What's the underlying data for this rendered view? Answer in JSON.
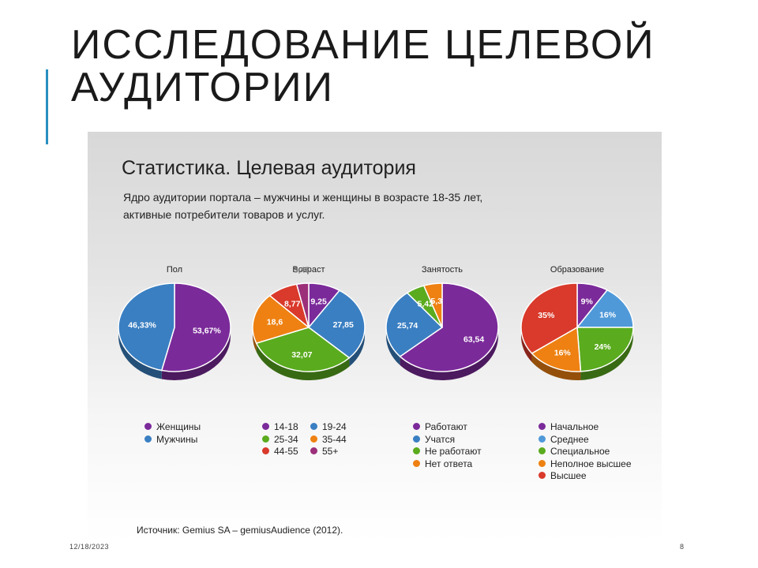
{
  "slide": {
    "title": "ИССЛЕДОВАНИЕ ЦЕЛЕВОЙ АУДИТОРИИ",
    "date": "12/18/2023",
    "page": "8"
  },
  "panel": {
    "title": "Статистика. Целевая аудитория",
    "subtitle_line1": "Ядро аудитории портала – мужчины и женщины в возрасте 18-35 лет,",
    "subtitle_line2": "активные потребители товаров и услуг.",
    "source": "Источник: Gemius SA – gemiusAudience (2012)."
  },
  "colors": {
    "purple": "#7b2a9a",
    "blue": "#3a7fc2",
    "green": "#5aab1e",
    "orange": "#ee8112",
    "red": "#d93a2b",
    "magenta": "#9c2f7a",
    "lightblue": "#4f99d9"
  },
  "chart_data": [
    {
      "type": "pie",
      "title": "Пол",
      "slices": [
        {
          "label": "Женщины",
          "value": 53.67,
          "display": "53,67%",
          "color": "#7b2a9a"
        },
        {
          "label": "Мужчины",
          "value": 46.33,
          "display": "46,33%",
          "color": "#3a7fc2"
        }
      ]
    },
    {
      "type": "pie",
      "title": "Возраст",
      "slices": [
        {
          "label": "14-18",
          "value": 9.25,
          "display": "9,25",
          "color": "#7b2a9a"
        },
        {
          "label": "19-24",
          "value": 27.85,
          "display": "27,85",
          "color": "#3a7fc2"
        },
        {
          "label": "25-34",
          "value": 32.07,
          "display": "32,07",
          "color": "#5aab1e"
        },
        {
          "label": "35-44",
          "value": 18.6,
          "display": "18,6",
          "color": "#ee8112"
        },
        {
          "label": "44-55",
          "value": 8.77,
          "display": "8,77",
          "color": "#d93a2b"
        },
        {
          "label": "55+",
          "value": 3.45,
          "display": "3,45",
          "color": "#9c2f7a"
        }
      ]
    },
    {
      "type": "pie",
      "title": "Занятость",
      "slices": [
        {
          "label": "Работают",
          "value": 63.54,
          "display": "63,54",
          "color": "#7b2a9a"
        },
        {
          "label": "Учатся",
          "value": 25.74,
          "display": "25,74",
          "color": "#3a7fc2"
        },
        {
          "label": "Не работают",
          "value": 5.42,
          "display": "5,42",
          "color": "#5aab1e"
        },
        {
          "label": "Нет ответа",
          "value": 5.3,
          "display": "5,3",
          "color": "#ee8112"
        }
      ]
    },
    {
      "type": "pie",
      "title": "Образование",
      "slices": [
        {
          "label": "Начальное",
          "value": 9,
          "display": "9%",
          "color": "#7b2a9a"
        },
        {
          "label": "Среднее",
          "value": 16,
          "display": "16%",
          "color": "#4f99d9"
        },
        {
          "label": "Специальное",
          "value": 24,
          "display": "24%",
          "color": "#5aab1e"
        },
        {
          "label": "Неполное высшее",
          "value": 16,
          "display": "16%",
          "color": "#ee8112"
        },
        {
          "label": "Высшее",
          "value": 35,
          "display": "35%",
          "color": "#d93a2b"
        }
      ]
    }
  ]
}
